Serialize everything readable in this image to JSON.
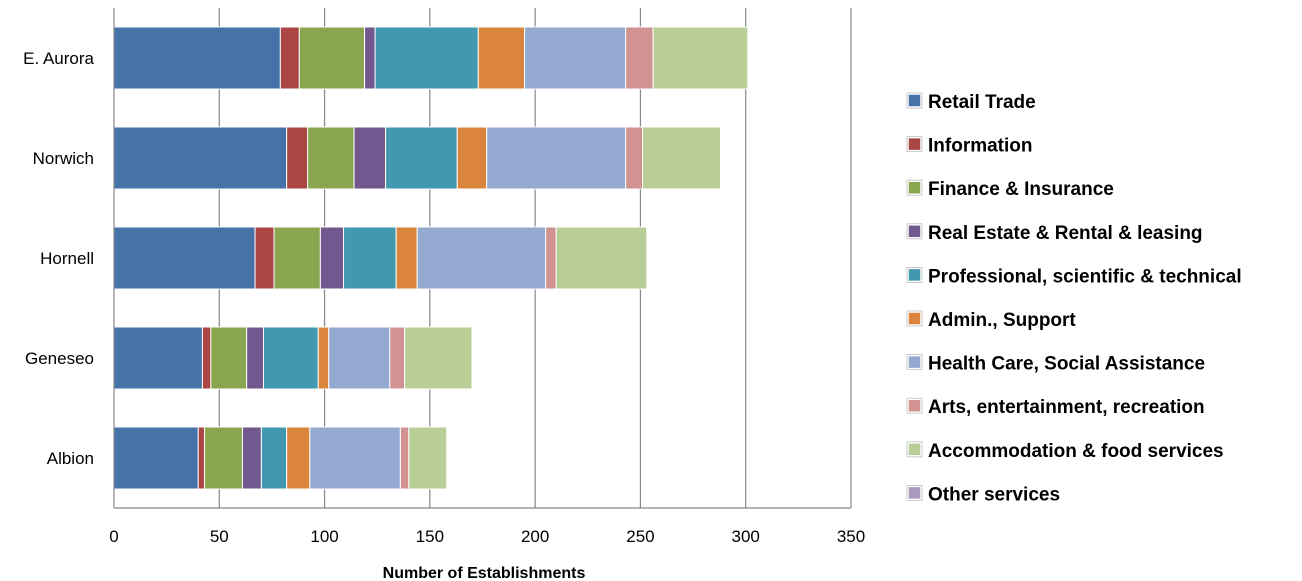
{
  "chart_data": {
    "type": "bar",
    "orientation": "horizontal",
    "stacked": true,
    "categories": [
      "Albion",
      "Geneseo",
      "Hornell",
      "Norwich",
      "E. Aurora"
    ],
    "series": [
      {
        "name": "Retail Trade",
        "color": "#4572A7",
        "values": [
          40,
          42,
          67,
          82,
          79
        ]
      },
      {
        "name": "Information",
        "color": "#AA4643",
        "values": [
          3,
          4,
          9,
          10,
          9
        ]
      },
      {
        "name": "Finance & Insurance",
        "color": "#89A54E",
        "values": [
          18,
          17,
          22,
          22,
          31
        ]
      },
      {
        "name": "Real Estate & Rental & leasing",
        "color": "#71588F",
        "values": [
          9,
          8,
          11,
          15,
          5
        ]
      },
      {
        "name": "Professional, scientific & technical",
        "color": "#4198AF",
        "values": [
          12,
          26,
          25,
          34,
          49
        ]
      },
      {
        "name": "Admin., Support",
        "color": "#DB843D",
        "values": [
          11,
          5,
          10,
          14,
          22
        ]
      },
      {
        "name": "Health Care, Social Assistance",
        "color": "#93A9CF",
        "values": [
          43,
          29,
          61,
          66,
          48
        ]
      },
      {
        "name": "Arts, entertainment, recreation",
        "color": "#D19392",
        "values": [
          4,
          7,
          5,
          8,
          13
        ]
      },
      {
        "name": "Accommodation & food services",
        "color": "#B9CD96",
        "values": [
          18,
          32,
          43,
          37,
          45
        ]
      },
      {
        "name": "Other services",
        "color": "#A99BBD",
        "values": [
          0,
          0,
          0,
          0,
          0
        ]
      }
    ],
    "xlabel": "Number of  Establishments",
    "ylabel": "",
    "xlim": [
      0,
      350
    ],
    "xticks": [
      "0",
      "50",
      "100",
      "150",
      "200",
      "250",
      "300",
      "350"
    ],
    "grid": "vertical",
    "legend": "right"
  }
}
